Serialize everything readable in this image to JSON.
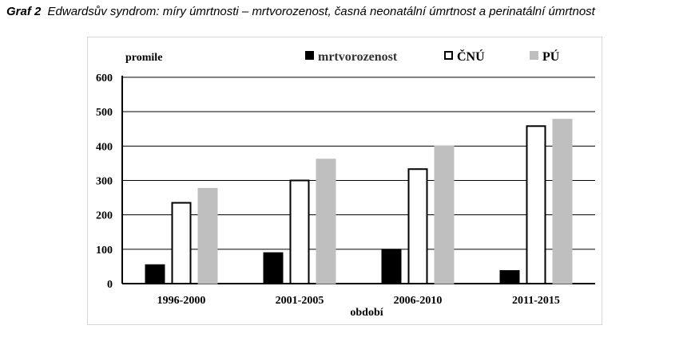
{
  "caption": {
    "label": "Graf 2",
    "text": "Edwardsův syndrom: míry úmrtnosti – mrtvorozenost, časná neonatální úmrtnost a perinatální úmrtnost"
  },
  "chart_data": {
    "type": "bar",
    "ylabel": "promile",
    "xlabel": "období",
    "categories": [
      "1996-2000",
      "2001-2005",
      "2006-2010",
      "2011-2015"
    ],
    "ylim": [
      0,
      600
    ],
    "yticks": [
      0,
      100,
      200,
      300,
      400,
      500,
      600
    ],
    "grid": true,
    "legend_position": "top",
    "series": [
      {
        "name": "mrtvorozenost",
        "values": [
          55,
          90,
          100,
          38
        ],
        "fill": "#000000",
        "stroke": "#000000"
      },
      {
        "name": "ČNÚ",
        "values": [
          235,
          300,
          333,
          458
        ],
        "fill": "#ffffff",
        "stroke": "#000000"
      },
      {
        "name": "PÚ",
        "values": [
          277,
          362,
          400,
          478
        ],
        "fill": "#bfbfbf",
        "stroke": "#bfbfbf"
      }
    ]
  }
}
